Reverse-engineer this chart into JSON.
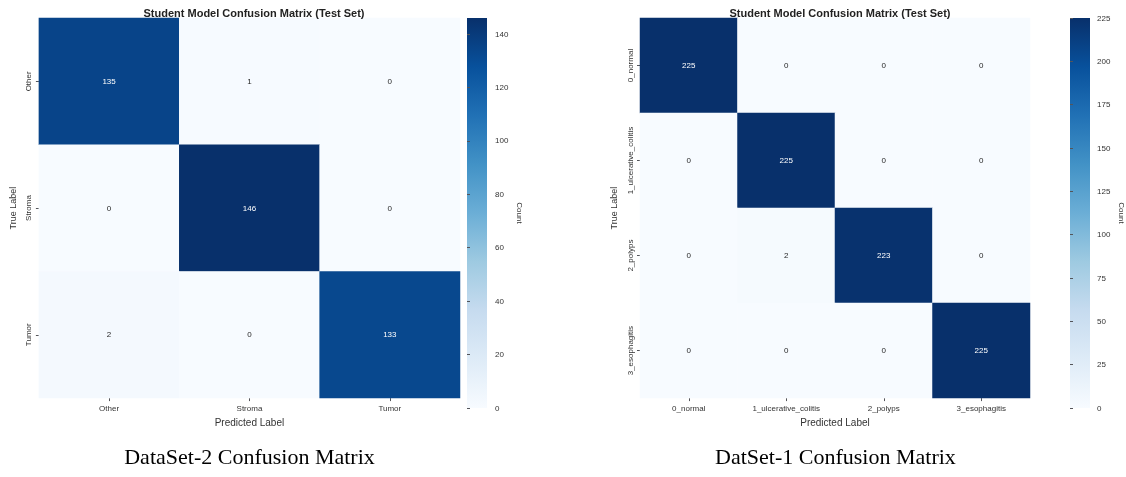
{
  "chart_data": [
    {
      "type": "heatmap",
      "title": "Student Model Confusion Matrix (Test Set)",
      "xlabel": "Predicted Label",
      "ylabel": "True Label",
      "clabel": "Count",
      "categories": [
        "Other",
        "Stroma",
        "Tumor"
      ],
      "y_categories": [
        "Other",
        "Stroma",
        "Tumor"
      ],
      "cells": [
        [
          135,
          1,
          0
        ],
        [
          0,
          146,
          0
        ],
        [
          2,
          0,
          133
        ]
      ],
      "clim": [
        0,
        146
      ],
      "cticks": [
        0,
        20,
        40,
        60,
        80,
        100,
        120,
        140
      ],
      "data_labels": true,
      "annotations": [
        "DataSet-2 Confusion Matrix"
      ]
    },
    {
      "type": "heatmap",
      "title": "Student Model Confusion Matrix (Test Set)",
      "xlabel": "Predicted Label",
      "ylabel": "True Label",
      "clabel": "Count",
      "categories": [
        "0_normal",
        "1_ulcerative_colitis",
        "2_polyps",
        "3_esophagitis"
      ],
      "y_categories": [
        "0_normal",
        "1_ulcerative_colitis",
        "2_polyps",
        "3_esophagitis"
      ],
      "cells": [
        [
          225,
          0,
          0,
          0
        ],
        [
          0,
          225,
          0,
          0
        ],
        [
          0,
          2,
          223,
          0
        ],
        [
          0,
          0,
          0,
          225
        ]
      ],
      "clim": [
        0,
        225
      ],
      "cticks": [
        0,
        25,
        50,
        75,
        100,
        125,
        150,
        175,
        200,
        225
      ],
      "data_labels": true,
      "annotations": [
        "DatSet-1 Confusion Matrix"
      ]
    }
  ]
}
